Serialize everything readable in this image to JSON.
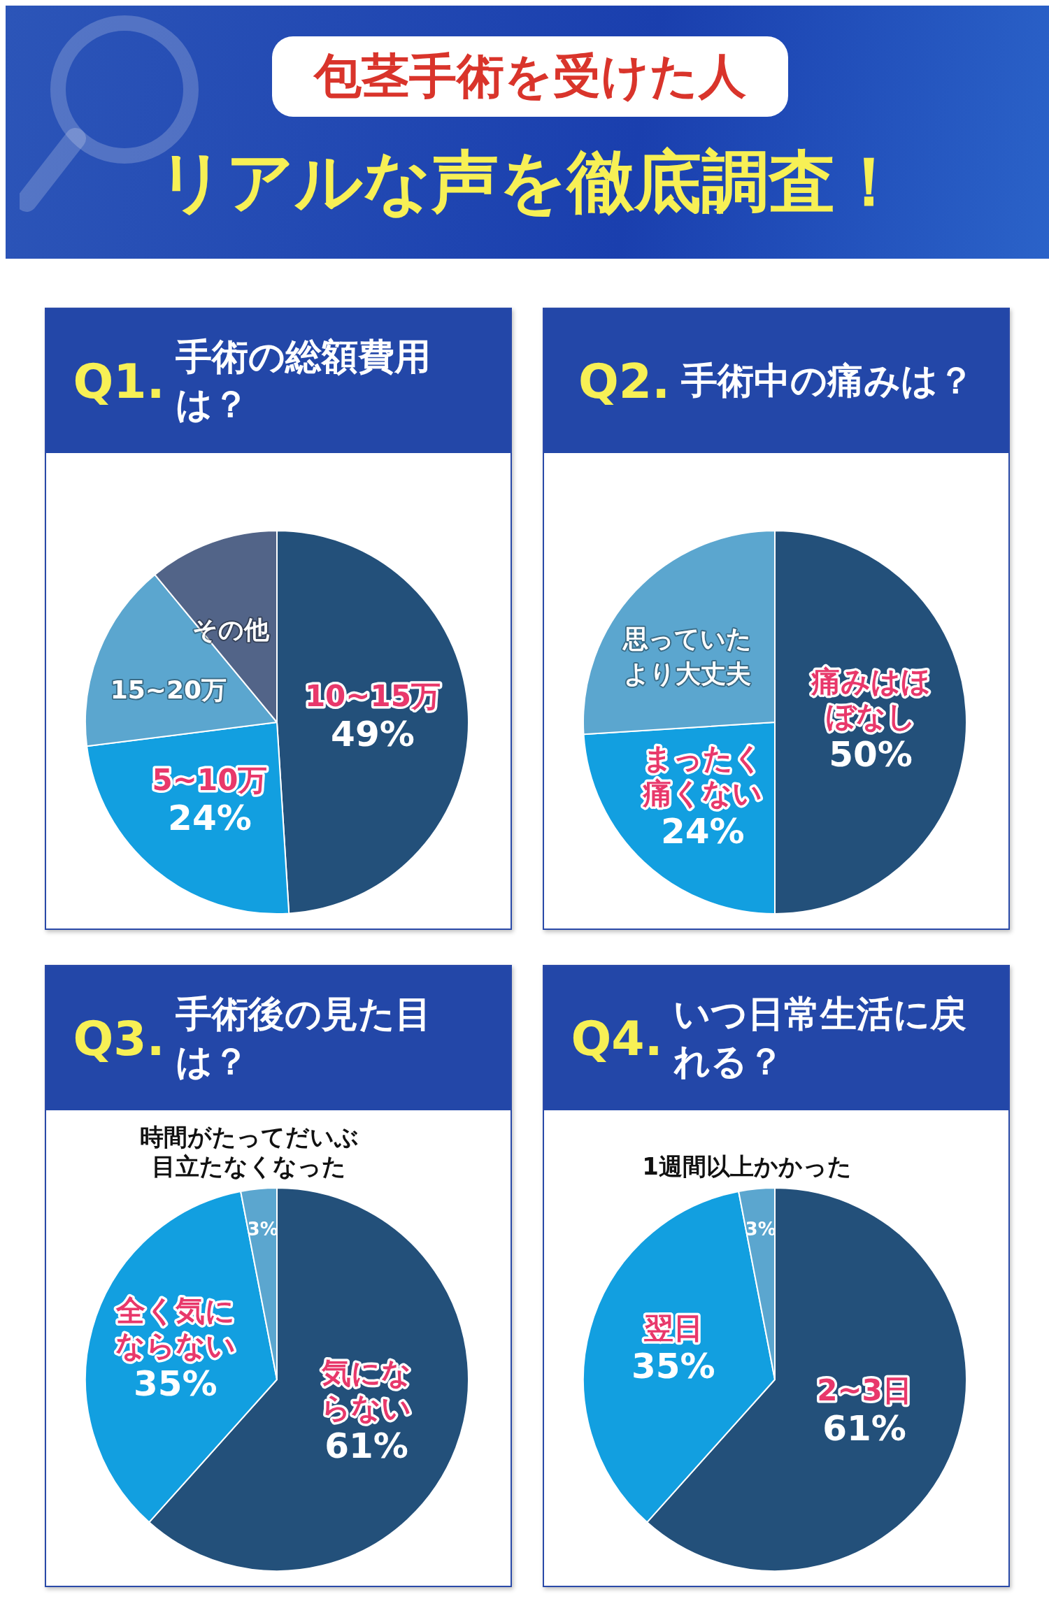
{
  "chart_data": [
    {
      "type": "other",
      "title": "包茎手術を受けた人",
      "subtitle": "リアルな声を徹底調査！"
    },
    {
      "type": "pie",
      "title": "Q1. 手術の総額費用は？",
      "categories": [
        "10~15万",
        "5~10万",
        "15~20万",
        "その他"
      ],
      "values": [
        49,
        24,
        16,
        11
      ],
      "value_labels": [
        "49%",
        "24%",
        null,
        null
      ],
      "colors": [
        "#23507a",
        "#129fe0",
        "#5ba6cf",
        "#526488"
      ]
    },
    {
      "type": "pie",
      "title": "Q2. 手術中の痛みは？",
      "categories": [
        "痛みはほぼなし",
        "まったく痛くない",
        "思っていたより大丈夫"
      ],
      "values": [
        50,
        24,
        26
      ],
      "value_labels": [
        "50%",
        "24%",
        null
      ],
      "colors": [
        "#23507a",
        "#129fe0",
        "#5ba6cf"
      ]
    },
    {
      "type": "pie",
      "title": "Q3. 手術後の見た目は？",
      "categories": [
        "気にならない",
        "全く気にならない",
        "時間がたってだいぶ目立たなくなった"
      ],
      "values": [
        61,
        35,
        3
      ],
      "value_labels": [
        "61%",
        "35%",
        "3%"
      ],
      "colors": [
        "#23507a",
        "#129fe0",
        "#5ba6cf"
      ]
    },
    {
      "type": "pie",
      "title": "Q4. いつ日常生活に戻れる？",
      "categories": [
        "2~3日",
        "翌日",
        "1週間以上かかった"
      ],
      "values": [
        61,
        35,
        3
      ],
      "value_labels": [
        "61%",
        "35%",
        "3%"
      ],
      "colors": [
        "#23507a",
        "#129fe0",
        "#5ba6cf"
      ]
    }
  ]
}
